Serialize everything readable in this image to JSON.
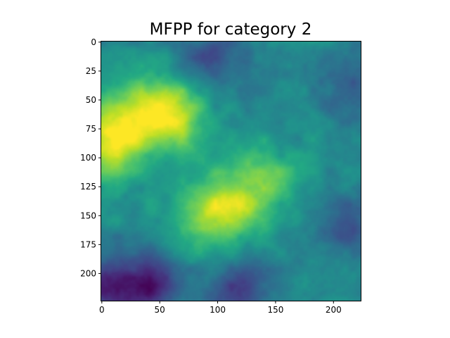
{
  "chart_data": {
    "type": "heatmap",
    "title": "MFPP for category 2",
    "colormap": "viridis",
    "x_ticks": [
      0,
      50,
      100,
      150,
      200
    ],
    "y_ticks": [
      0,
      25,
      50,
      75,
      100,
      125,
      150,
      175,
      200
    ],
    "xlim": [
      0,
      224
    ],
    "ylim": [
      224,
      0
    ],
    "image_size": [
      224,
      224
    ],
    "grid": false,
    "hotspots": [
      {
        "x": 45,
        "y": 60,
        "value": 0.85
      },
      {
        "x": 10,
        "y": 75,
        "value": 0.85
      },
      {
        "x": 65,
        "y": 65,
        "value": 0.78
      },
      {
        "x": 110,
        "y": 145,
        "value": 0.82
      },
      {
        "x": 140,
        "y": 120,
        "value": 0.78
      },
      {
        "x": 85,
        "y": 150,
        "value": 0.72
      },
      {
        "x": 5,
        "y": 95,
        "value": 0.72
      }
    ],
    "lowspots": [
      {
        "x": 40,
        "y": 210,
        "value": 0.1
      },
      {
        "x": 5,
        "y": 215,
        "value": 0.12
      },
      {
        "x": 95,
        "y": 15,
        "value": 0.22
      },
      {
        "x": 215,
        "y": 40,
        "value": 0.25
      },
      {
        "x": 215,
        "y": 160,
        "value": 0.25
      },
      {
        "x": 120,
        "y": 215,
        "value": 0.2
      }
    ]
  }
}
